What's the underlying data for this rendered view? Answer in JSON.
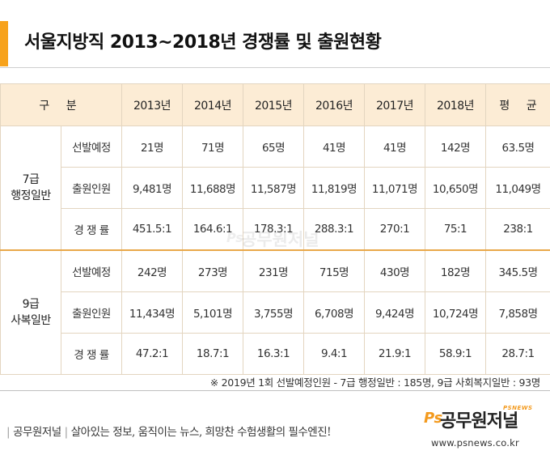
{
  "header": {
    "title": "서울지방직 2013~2018년 경쟁률 및 출원현황"
  },
  "table": {
    "columns": [
      "구 분",
      "2013년",
      "2014년",
      "2015년",
      "2016년",
      "2017년",
      "2018년",
      "평 균"
    ],
    "groups": [
      {
        "label_line1": "7급",
        "label_line2": "행정일반",
        "rows": [
          {
            "label": "선발예정",
            "values": [
              "21명",
              "71명",
              "65명",
              "41명",
              "41명",
              "142명",
              "63.5명"
            ]
          },
          {
            "label": "출원인원",
            "values": [
              "9,481명",
              "11,688명",
              "11,587명",
              "11,819명",
              "11,071명",
              "10,650명",
              "11,049명"
            ]
          },
          {
            "label": "경 쟁 률",
            "values": [
              "451.5:1",
              "164.6:1",
              "178.3:1",
              "288.3:1",
              "270:1",
              "75:1",
              "238:1"
            ]
          }
        ]
      },
      {
        "label_line1": "9급",
        "label_line2": "사복일반",
        "rows": [
          {
            "label": "선발예정",
            "values": [
              "242명",
              "273명",
              "231명",
              "715명",
              "430명",
              "182명",
              "345.5명"
            ]
          },
          {
            "label": "출원인원",
            "values": [
              "11,434명",
              "5,101명",
              "3,755명",
              "6,708명",
              "9,424명",
              "10,724명",
              "7,858명"
            ]
          },
          {
            "label": "경 쟁 률",
            "values": [
              "47.2:1",
              "18.7:1",
              "16.3:1",
              "9.4:1",
              "21.9:1",
              "58.9:1",
              "28.7:1"
            ]
          }
        ]
      }
    ]
  },
  "footnote": "※ 2019년 1회 선발예정인원 - 7급 행정일반 : 185명, 9급 사회복지일반 : 93명",
  "footer": {
    "brand": "공무원저널",
    "slogan": "살아있는 정보, 움직이는 뉴스, 희망찬 수험생활의 필수엔진!",
    "logo_ps": "Ps",
    "logo_name": "공무원저널",
    "logo_small": "PSNEWS",
    "url": "www.psnews.co.kr"
  },
  "colors": {
    "accent": "#f7a21b",
    "header_bg": "#fcecd5",
    "border": "#e3d5c0"
  }
}
